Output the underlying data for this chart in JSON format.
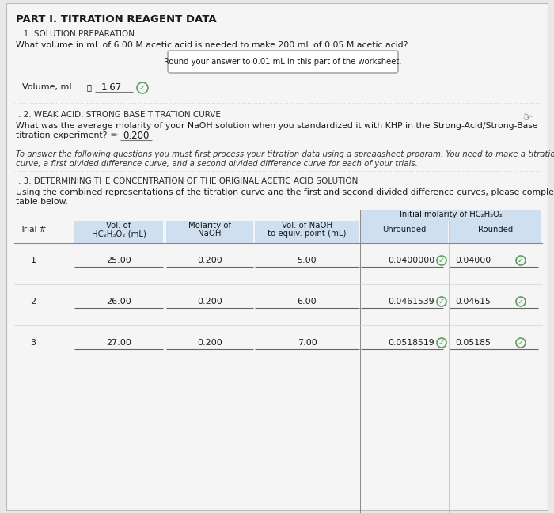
{
  "background_color": "#e8e8e8",
  "page_bg": "#f5f5f5",
  "title": "PART I. TITRATION REAGENT DATA",
  "section1_header": "I. 1. SOLUTION PREPARATION",
  "section1_question": "What volume in mL of 6.00 M acetic acid is needed to make 200 mL of 0.05 M acetic acid?",
  "hint_box_text": "Round your answer to 0.01 mL in this part of the worksheet.",
  "volume_label": "Volume, mL",
  "volume_value": "1.67",
  "section2_header": "I. 2. WEAK ACID, STRONG BASE TITRATION CURVE",
  "section2_q1": "What was the average molarity of your NaOH solution when you standardized it with KHP in the Strong-Acid/Strong-Base",
  "section2_q2": "titration experiment?",
  "naoh_value": "0.200",
  "italic1": "To answer the following questions you must first process your titration data using a spreadsheet program. You need to make a titration",
  "italic2": "curve, a first divided difference curve, and a second divided difference curve for each of your trials.",
  "section3_header": "I. 3. DETERMINING THE CONCENTRATION OF THE ORIGINAL ACETIC ACID SOLUTION",
  "section3_line1": "Using the combined representations of the titration curve and the first and second divided difference curves, please complete the",
  "section3_line2": "table below.",
  "col1": "Trial #",
  "col2a": "Vol. of",
  "col2b": "HC₂H₃O₂ (mL)",
  "col3a": "Molarity of",
  "col3b": "NaOH",
  "col4a": "Vol. of NaOH",
  "col4b": "to equiv. point (mL)",
  "col5_top": "Initial molarity of HC₂H₃O₂",
  "col5a": "Unrounded",
  "col5b": "Rounded",
  "trials": [
    {
      "n": "1",
      "vol_hc": "25.00",
      "mol": "0.200",
      "vol_naoh": "5.00",
      "unrounded": "0.0400000",
      "rounded": "0.04000"
    },
    {
      "n": "2",
      "vol_hc": "26.00",
      "mol": "0.200",
      "vol_naoh": "6.00",
      "unrounded": "0.0461539",
      "rounded": "0.04615"
    },
    {
      "n": "3",
      "vol_hc": "27.00",
      "mol": "0.200",
      "vol_naoh": "7.00",
      "unrounded": "0.0518519",
      "rounded": "0.05185"
    }
  ],
  "check_color": "#5a9e5a",
  "check_border": "#5a9e5a",
  "blue_bg": "#d0dff0",
  "col_border": "#999999",
  "dot_line_color": "#b0b0b0"
}
